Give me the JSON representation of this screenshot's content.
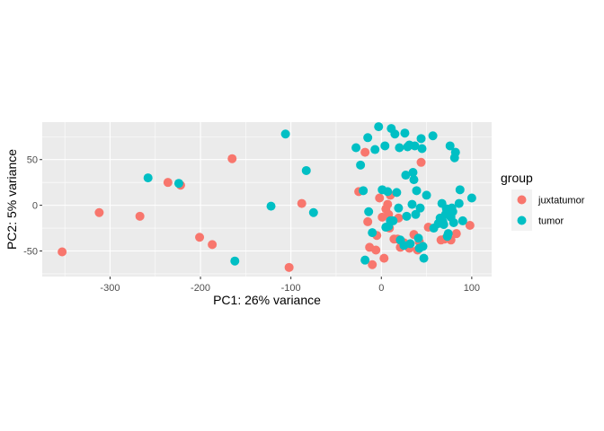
{
  "chart_data": {
    "type": "scatter",
    "title": "",
    "xlabel": "PC1: 26% variance",
    "ylabel": "PC2: 5% variance",
    "xlim": [
      -375,
      122
    ],
    "ylim": [
      -78,
      91
    ],
    "xticks": [
      -300,
      -200,
      -100,
      0,
      100
    ],
    "yticks": [
      -50,
      0,
      50
    ],
    "xtick_labels": [
      "-300",
      "-200",
      "-100",
      "0",
      "100"
    ],
    "ytick_labels": [
      "-50",
      "0",
      "50"
    ],
    "grid": true,
    "legend": {
      "title": "group",
      "position": "right"
    },
    "series": [
      {
        "name": "juxtatumor",
        "color": "#F8766D",
        "points": [
          [
            -353,
            -51
          ],
          [
            -312,
            -8
          ],
          [
            -267,
            -12
          ],
          [
            -236,
            25
          ],
          [
            -222,
            22
          ],
          [
            -201,
            -35
          ],
          [
            -187,
            -43
          ],
          [
            -165,
            51
          ],
          [
            -102,
            -68
          ],
          [
            -88,
            2
          ],
          [
            -25,
            15
          ],
          [
            -18,
            58
          ],
          [
            -15,
            -18
          ],
          [
            -13,
            -46
          ],
          [
            -10,
            -65
          ],
          [
            -6,
            -49
          ],
          [
            -5,
            -33
          ],
          [
            -2,
            8
          ],
          [
            1,
            -13
          ],
          [
            3,
            -58
          ],
          [
            5,
            -4
          ],
          [
            7,
            1
          ],
          [
            8,
            -10
          ],
          [
            9,
            -25
          ],
          [
            10,
            11
          ],
          [
            14,
            -37
          ],
          [
            18,
            -37
          ],
          [
            19,
            -14
          ],
          [
            21,
            -46
          ],
          [
            25,
            -41
          ],
          [
            28,
            -44
          ],
          [
            31,
            -47
          ],
          [
            36,
            -32
          ],
          [
            40,
            -49
          ],
          [
            42,
            -40
          ],
          [
            44,
            47
          ],
          [
            52,
            -24
          ],
          [
            66,
            -38
          ],
          [
            70,
            -37
          ],
          [
            72,
            -36
          ],
          [
            77,
            -38
          ],
          [
            83,
            -31
          ],
          [
            98,
            -22
          ]
        ]
      },
      {
        "name": "tumor",
        "color": "#00BFC4",
        "points": [
          [
            -258,
            30
          ],
          [
            -224,
            24
          ],
          [
            -162,
            -61
          ],
          [
            -122,
            -1
          ],
          [
            -106,
            78
          ],
          [
            -83,
            38
          ],
          [
            -75,
            -8
          ],
          [
            -28,
            63
          ],
          [
            -23,
            44
          ],
          [
            -20,
            16
          ],
          [
            -18,
            -60
          ],
          [
            -15,
            74
          ],
          [
            -14,
            -7
          ],
          [
            -10,
            -30
          ],
          [
            -7,
            61
          ],
          [
            -3,
            86
          ],
          [
            1,
            17
          ],
          [
            4,
            65
          ],
          [
            5,
            -24
          ],
          [
            7,
            15
          ],
          [
            8,
            -23
          ],
          [
            10,
            -17
          ],
          [
            11,
            84
          ],
          [
            13,
            -17
          ],
          [
            15,
            78
          ],
          [
            17,
            14
          ],
          [
            19,
            -3
          ],
          [
            20,
            63
          ],
          [
            21,
            -38
          ],
          [
            25,
            -44
          ],
          [
            26,
            79
          ],
          [
            27,
            33
          ],
          [
            28,
            -12
          ],
          [
            29,
            64
          ],
          [
            31,
            66
          ],
          [
            32,
            -42
          ],
          [
            34,
            1
          ],
          [
            35,
            36
          ],
          [
            36,
            28
          ],
          [
            37,
            65
          ],
          [
            38,
            -10
          ],
          [
            39,
            16
          ],
          [
            41,
            -36
          ],
          [
            42,
            -47
          ],
          [
            43,
            -3
          ],
          [
            44,
            73
          ],
          [
            45,
            62
          ],
          [
            46,
            -45
          ],
          [
            47,
            -58
          ],
          [
            50,
            11
          ],
          [
            57,
            76
          ],
          [
            58,
            -25
          ],
          [
            63,
            -20
          ],
          [
            65,
            -14
          ],
          [
            66,
            -16
          ],
          [
            67,
            2
          ],
          [
            68,
            -18
          ],
          [
            69,
            -21
          ],
          [
            71,
            -10
          ],
          [
            72,
            -4
          ],
          [
            73,
            -34
          ],
          [
            74,
            -31
          ],
          [
            76,
            65
          ],
          [
            77,
            -13
          ],
          [
            78,
            -3
          ],
          [
            79,
            -7
          ],
          [
            80,
            -19
          ],
          [
            81,
            52
          ],
          [
            82,
            58
          ],
          [
            86,
            2
          ],
          [
            87,
            17
          ],
          [
            90,
            -17
          ],
          [
            100,
            8
          ]
        ]
      }
    ]
  }
}
